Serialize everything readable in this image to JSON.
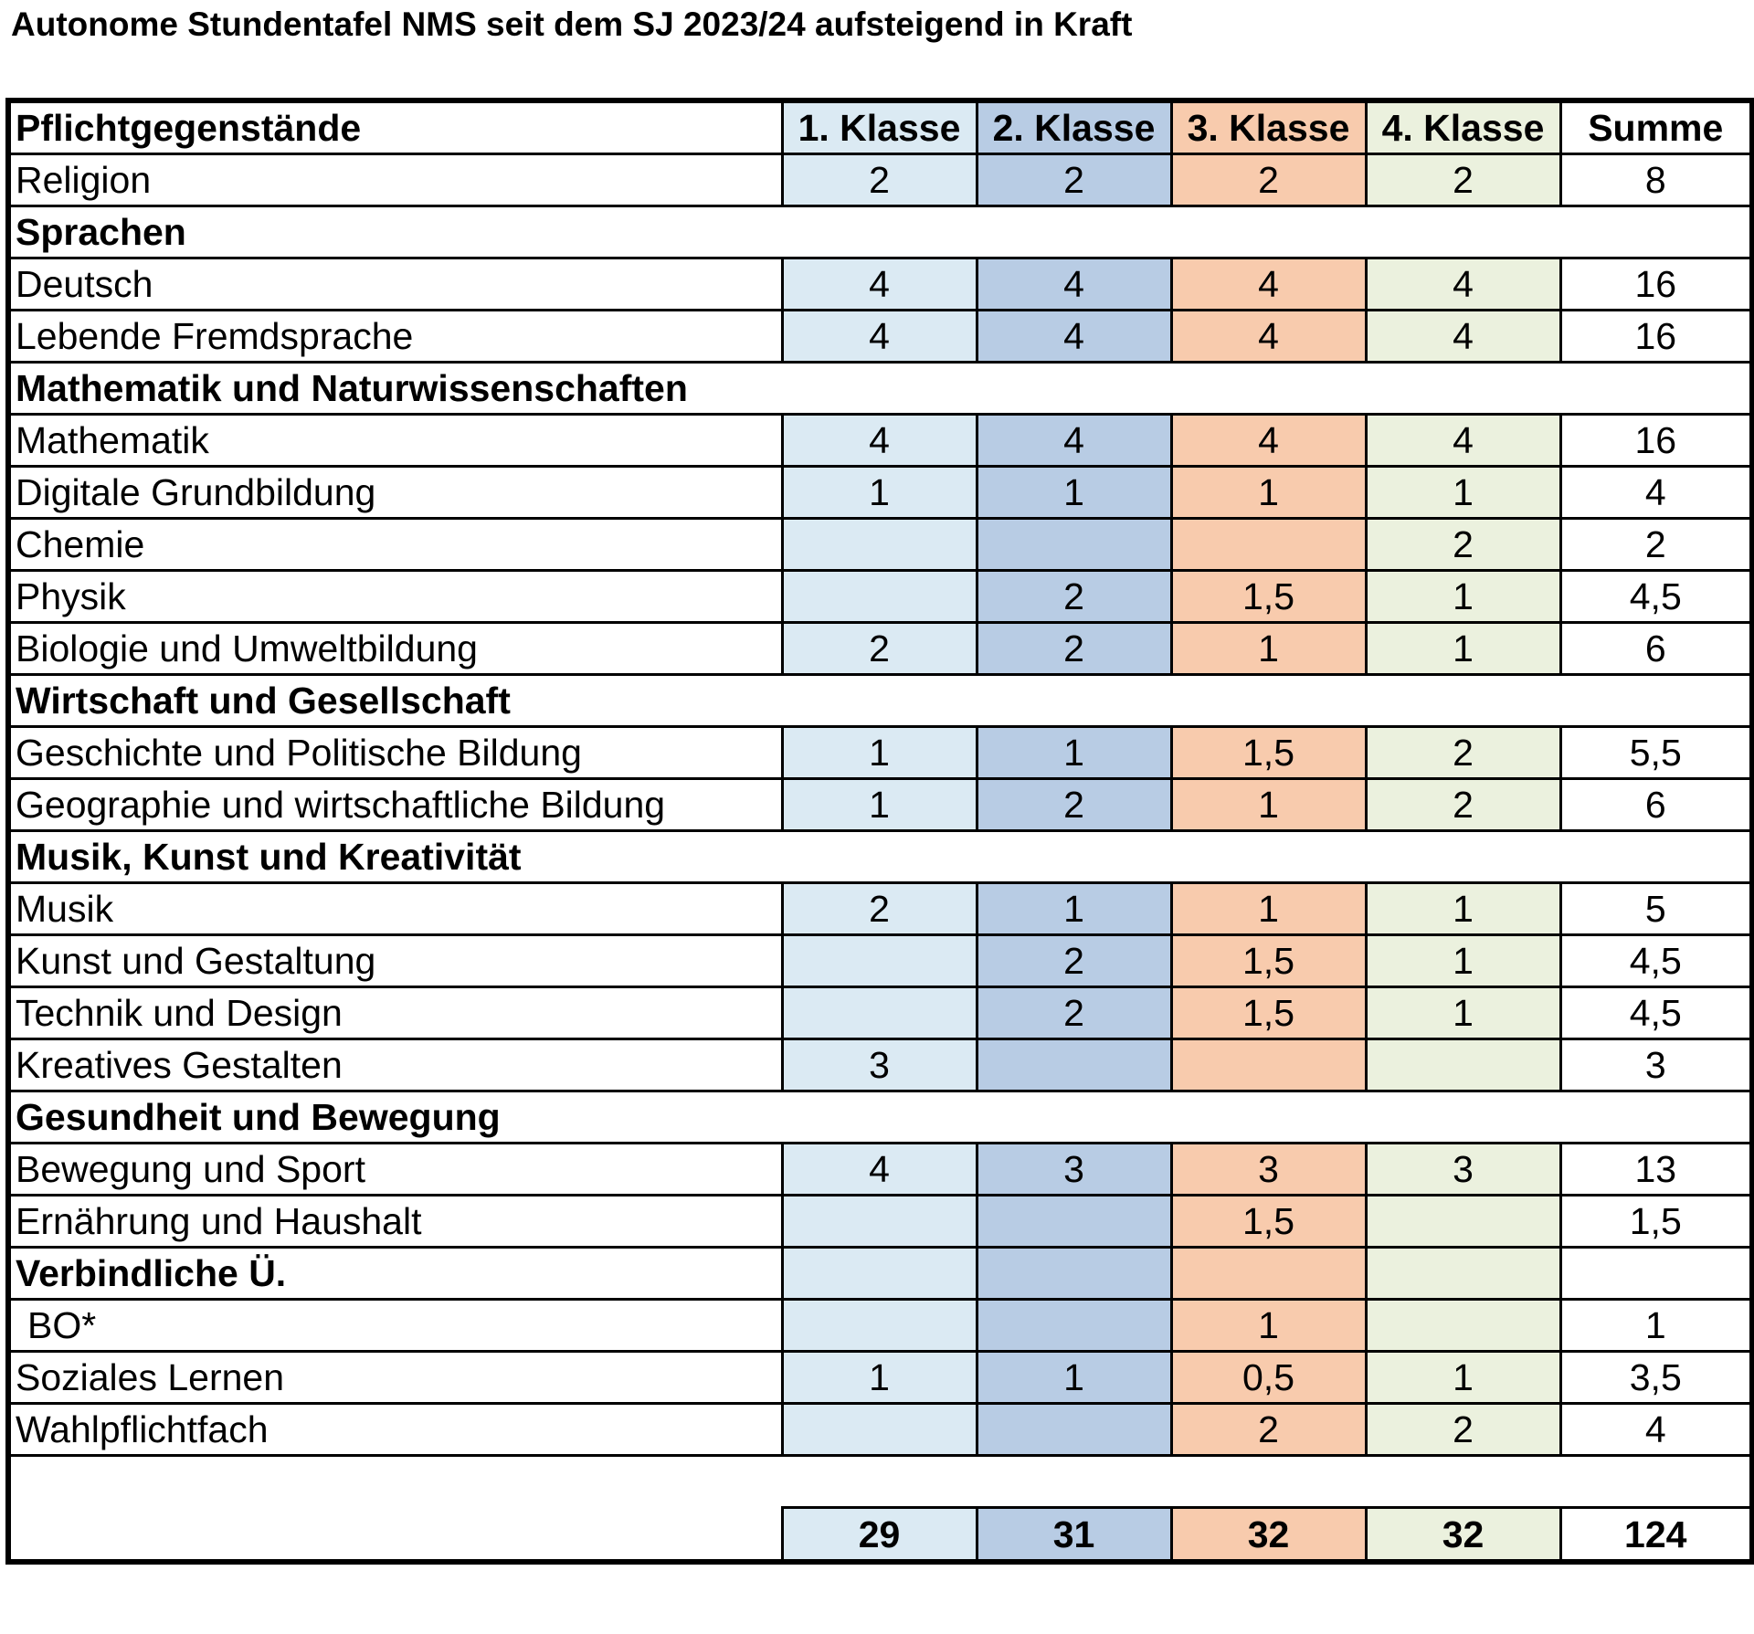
{
  "title": "Autonome Stundentafel NMS seit dem SJ 2023/24 aufsteigend in Kraft",
  "colors": {
    "klasse1": "#dbeaf3",
    "klasse2": "#b8cce4",
    "klasse3": "#f8cbad",
    "klasse4": "#ebf1de"
  },
  "header": [
    "Pflichtgegenstände",
    "1. Klasse",
    "2. Klasse",
    "3. Klasse",
    "4. Klasse",
    "Summe"
  ],
  "rows": [
    {
      "type": "subject",
      "label": "Religion",
      "values": [
        "2",
        "2",
        "2",
        "2",
        "8"
      ]
    },
    {
      "type": "section",
      "label": "Sprachen"
    },
    {
      "type": "subject",
      "label": "Deutsch",
      "values": [
        "4",
        "4",
        "4",
        "4",
        "16"
      ]
    },
    {
      "type": "subject",
      "label": "Lebende Fremdsprache",
      "values": [
        "4",
        "4",
        "4",
        "4",
        "16"
      ]
    },
    {
      "type": "section",
      "label": "Mathematik und Naturwissenschaften"
    },
    {
      "type": "subject",
      "label": "Mathematik",
      "values": [
        "4",
        "4",
        "4",
        "4",
        "16"
      ]
    },
    {
      "type": "subject",
      "label": "Digitale Grundbildung",
      "values": [
        "1",
        "1",
        "1",
        "1",
        "4"
      ]
    },
    {
      "type": "subject",
      "label": "Chemie",
      "values": [
        "",
        "",
        "",
        "2",
        "2"
      ]
    },
    {
      "type": "subject",
      "label": "Physik",
      "values": [
        "",
        "2",
        "1,5",
        "1",
        "4,5"
      ]
    },
    {
      "type": "subject",
      "label": "Biologie und Umweltbildung",
      "values": [
        "2",
        "2",
        "1",
        "1",
        "6"
      ]
    },
    {
      "type": "section",
      "label": "Wirtschaft und Gesellschaft"
    },
    {
      "type": "subject",
      "label": "Geschichte und Politische Bildung",
      "values": [
        "1",
        "1",
        "1,5",
        "2",
        "5,5"
      ]
    },
    {
      "type": "subject",
      "label": "Geographie und wirtschaftliche Bildung",
      "values": [
        "1",
        "2",
        "1",
        "2",
        "6"
      ]
    },
    {
      "type": "section",
      "label": "Musik, Kunst und Kreativität"
    },
    {
      "type": "subject",
      "label": "Musik",
      "values": [
        "2",
        "1",
        "1",
        "1",
        "5"
      ]
    },
    {
      "type": "subject",
      "label": "Kunst und Gestaltung",
      "values": [
        "",
        "2",
        "1,5",
        "1",
        "4,5"
      ]
    },
    {
      "type": "subject",
      "label": "Technik und Design",
      "values": [
        "",
        "2",
        "1,5",
        "1",
        "4,5"
      ]
    },
    {
      "type": "subject",
      "label": "Kreatives Gestalten",
      "values": [
        "3",
        "",
        "",
        "",
        "3"
      ]
    },
    {
      "type": "section",
      "label": "Gesundheit und Bewegung"
    },
    {
      "type": "subject",
      "label": "Bewegung und Sport",
      "values": [
        "4",
        "3",
        "3",
        "3",
        "13"
      ]
    },
    {
      "type": "subject",
      "label": "Ernährung und Haushalt",
      "values": [
        "",
        "",
        "1,5",
        "",
        "1,5"
      ]
    },
    {
      "type": "section-cells",
      "label": "Verbindliche Ü.",
      "values": [
        "",
        "",
        "",
        "",
        ""
      ]
    },
    {
      "type": "subject",
      "label": "BO*",
      "indent": true,
      "values": [
        "",
        "",
        "1",
        "",
        "1"
      ]
    },
    {
      "type": "subject",
      "label": "Soziales Lernen",
      "values": [
        "1",
        "1",
        "0,5",
        "1",
        "3,5"
      ]
    },
    {
      "type": "subject",
      "label": "Wahlpflichtfach",
      "values": [
        "",
        "",
        "2",
        "2",
        "4"
      ]
    }
  ],
  "totals": [
    "29",
    "31",
    "32",
    "32",
    "124"
  ]
}
